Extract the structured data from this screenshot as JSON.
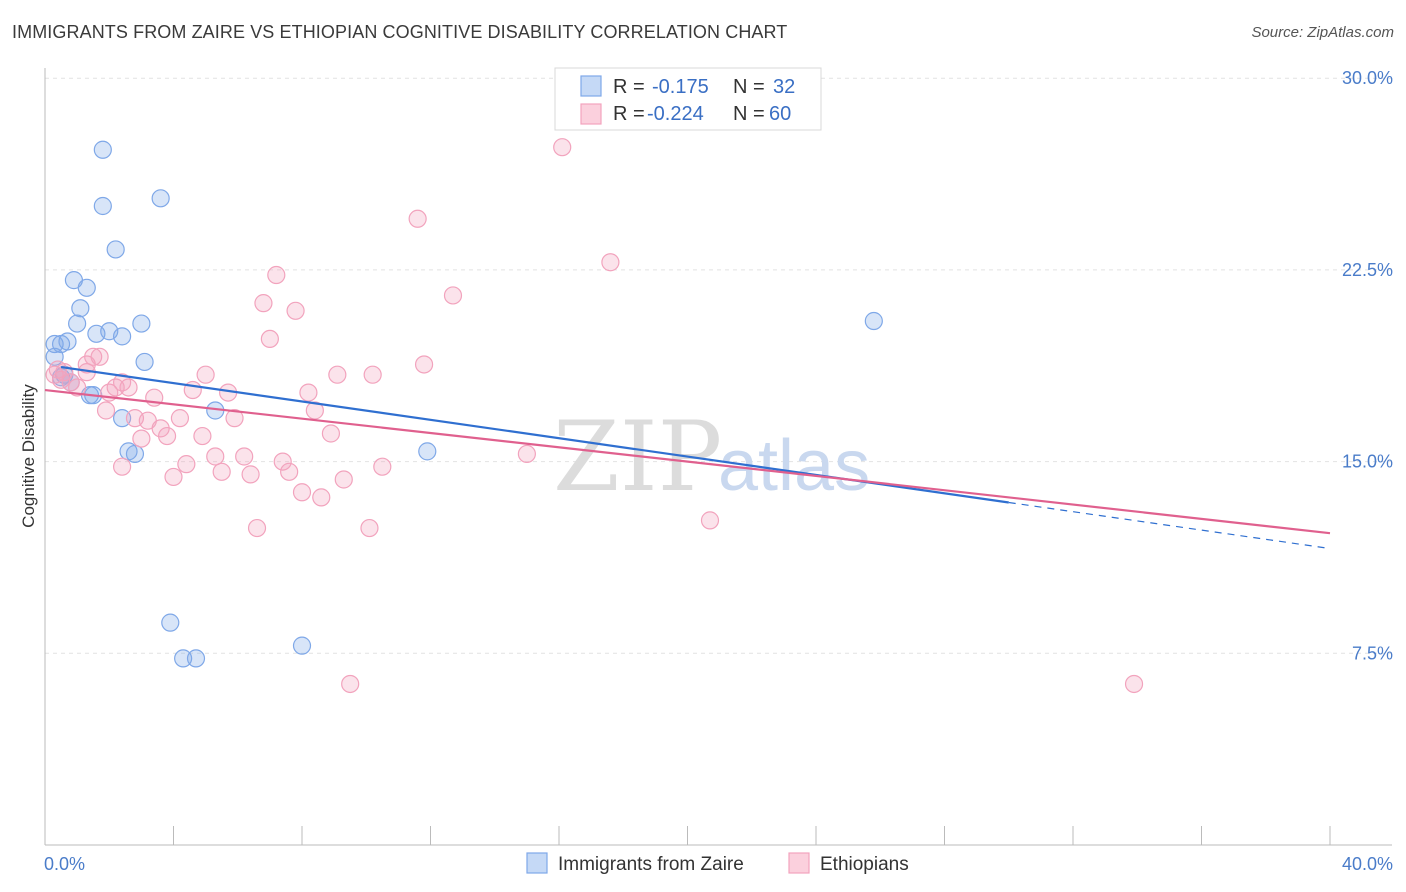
{
  "title": "IMMIGRANTS FROM ZAIRE VS ETHIOPIAN COGNITIVE DISABILITY CORRELATION CHART",
  "source": "Source: ZipAtlas.com",
  "watermark": {
    "zip": "ZIP",
    "atlas": "atlas"
  },
  "chart_data": {
    "type": "scatter",
    "xlabel": "",
    "ylabel": "Cognitive Disability",
    "xlim": [
      0,
      40
    ],
    "ylim": [
      0,
      31
    ],
    "x_tick_labels": [
      "0.0%",
      "40.0%"
    ],
    "y_ticks": [
      7.5,
      15.0,
      22.5,
      30.0
    ],
    "y_tick_labels": [
      "7.5%",
      "15.0%",
      "22.5%",
      "30.0%"
    ],
    "grid": true,
    "legend_top": [
      {
        "r_label": "R =",
        "r_value": "-0.175",
        "n_label": "N =",
        "n_value": "32"
      },
      {
        "r_label": "R =",
        "r_value": "-0.224",
        "n_label": "N =",
        "n_value": "60"
      }
    ],
    "series": [
      {
        "name": "Immigrants from Zaire",
        "color": "#7fa8e8",
        "line_color": "#2f6fd0",
        "trend": {
          "x0": 0.5,
          "y0": 18.7,
          "x1": 30.0,
          "y1": 13.4,
          "x_dash_end": 40.0,
          "y_dash_end": 11.6
        },
        "points": [
          [
            0.3,
            19.6
          ],
          [
            0.3,
            19.1
          ],
          [
            0.5,
            19.6
          ],
          [
            0.6,
            18.4
          ],
          [
            0.7,
            19.7
          ],
          [
            0.8,
            18.1
          ],
          [
            0.9,
            22.1
          ],
          [
            1.0,
            20.4
          ],
          [
            1.1,
            21.0
          ],
          [
            1.3,
            21.8
          ],
          [
            1.4,
            17.6
          ],
          [
            1.5,
            17.6
          ],
          [
            1.6,
            20.0
          ],
          [
            1.8,
            27.2
          ],
          [
            1.8,
            25.0
          ],
          [
            2.0,
            20.1
          ],
          [
            2.2,
            23.3
          ],
          [
            2.4,
            19.9
          ],
          [
            2.4,
            16.7
          ],
          [
            2.6,
            15.4
          ],
          [
            2.8,
            15.3
          ],
          [
            3.0,
            20.4
          ],
          [
            3.1,
            18.9
          ],
          [
            3.6,
            25.3
          ],
          [
            3.9,
            8.7
          ],
          [
            4.3,
            7.3
          ],
          [
            4.7,
            7.3
          ],
          [
            5.3,
            17.0
          ],
          [
            8.0,
            7.8
          ],
          [
            11.9,
            15.4
          ],
          [
            25.8,
            20.5
          ],
          [
            0.5,
            18.3
          ]
        ]
      },
      {
        "name": "Ethiopians",
        "color": "#f2a3bd",
        "line_color": "#e0608e",
        "trend": {
          "x0": 0.0,
          "y0": 17.8,
          "x1": 40.0,
          "y1": 12.2
        },
        "points": [
          [
            0.3,
            18.4
          ],
          [
            0.4,
            18.6
          ],
          [
            0.5,
            18.2
          ],
          [
            0.6,
            18.5
          ],
          [
            0.8,
            18.1
          ],
          [
            1.0,
            17.9
          ],
          [
            1.3,
            18.8
          ],
          [
            1.3,
            18.5
          ],
          [
            1.5,
            19.1
          ],
          [
            1.7,
            19.1
          ],
          [
            1.9,
            17.0
          ],
          [
            2.0,
            17.7
          ],
          [
            2.2,
            17.9
          ],
          [
            2.4,
            18.1
          ],
          [
            2.4,
            14.8
          ],
          [
            2.6,
            17.9
          ],
          [
            2.8,
            16.7
          ],
          [
            3.0,
            15.9
          ],
          [
            3.2,
            16.6
          ],
          [
            3.4,
            17.5
          ],
          [
            3.6,
            16.3
          ],
          [
            3.8,
            16.0
          ],
          [
            4.0,
            14.4
          ],
          [
            4.2,
            16.7
          ],
          [
            4.4,
            14.9
          ],
          [
            4.6,
            17.8
          ],
          [
            4.9,
            16.0
          ],
          [
            5.0,
            18.4
          ],
          [
            5.3,
            15.2
          ],
          [
            5.5,
            14.6
          ],
          [
            5.7,
            17.7
          ],
          [
            5.9,
            16.7
          ],
          [
            6.2,
            15.2
          ],
          [
            6.4,
            14.5
          ],
          [
            6.6,
            12.4
          ],
          [
            6.8,
            21.2
          ],
          [
            7.0,
            19.8
          ],
          [
            7.2,
            22.3
          ],
          [
            7.4,
            15.0
          ],
          [
            7.6,
            14.6
          ],
          [
            7.8,
            20.9
          ],
          [
            8.0,
            13.8
          ],
          [
            8.2,
            17.7
          ],
          [
            8.4,
            17.0
          ],
          [
            8.6,
            13.6
          ],
          [
            8.9,
            16.1
          ],
          [
            9.1,
            18.4
          ],
          [
            9.3,
            14.3
          ],
          [
            9.5,
            6.3
          ],
          [
            10.1,
            12.4
          ],
          [
            10.2,
            18.4
          ],
          [
            10.5,
            14.8
          ],
          [
            11.6,
            24.5
          ],
          [
            11.8,
            18.8
          ],
          [
            12.7,
            21.5
          ],
          [
            15.0,
            15.3
          ],
          [
            16.1,
            27.3
          ],
          [
            17.6,
            22.8
          ],
          [
            20.7,
            12.7
          ],
          [
            33.9,
            6.3
          ]
        ]
      }
    ]
  }
}
